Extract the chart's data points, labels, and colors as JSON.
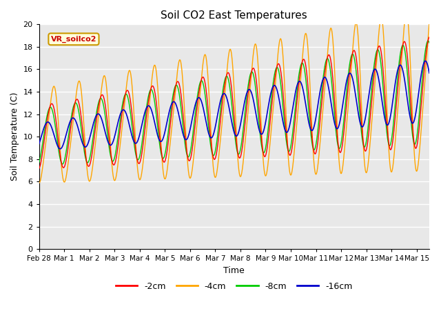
{
  "title": "Soil CO2 East Temperatures",
  "xlabel": "Time",
  "ylabel": "Soil Temperature (C)",
  "ylim": [
    0,
    20
  ],
  "background_color": "#e8e8e8",
  "fig_background": "#ffffff",
  "grid_color": "#ffffff",
  "colors": {
    "-2cm": "#ff0000",
    "-4cm": "#ffa500",
    "-8cm": "#00cc00",
    "-16cm": "#0000cc"
  },
  "legend_label": "VR_soilco2",
  "legend_bg": "#ffffdd",
  "legend_border": "#cc9900",
  "tick_labels": [
    "Feb 28",
    "Mar 1",
    "Mar 2",
    "Mar 3",
    "Mar 4",
    "Mar 5",
    "Mar 6",
    "Mar 7",
    "Mar 8",
    "Mar 9",
    "Mar 10",
    "Mar 11",
    "Mar 12",
    "Mar 13",
    "Mar 14",
    "Mar 15"
  ],
  "num_days": 15.5
}
